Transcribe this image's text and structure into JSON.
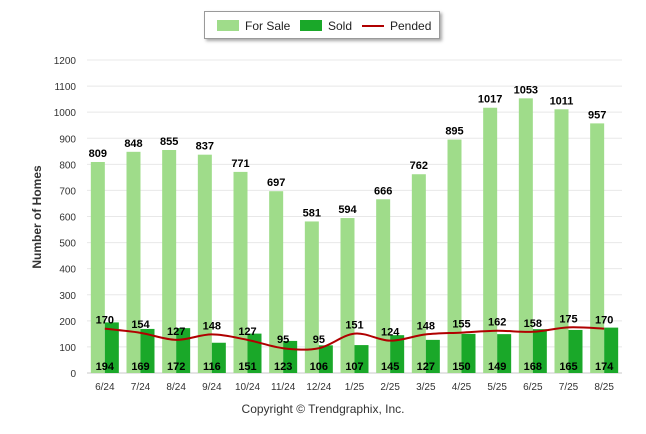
{
  "chart_data": {
    "type": "bar",
    "ylabel": "Number of Homes",
    "ylim": [
      0,
      1200
    ],
    "yticks": [
      0,
      100,
      200,
      300,
      400,
      500,
      600,
      700,
      800,
      900,
      1000,
      1100,
      1200
    ],
    "grid": true,
    "legend_position": "top-center",
    "categories": [
      "6/24",
      "7/24",
      "8/24",
      "9/24",
      "10/24",
      "11/24",
      "12/24",
      "1/25",
      "2/25",
      "3/25",
      "4/25",
      "5/25",
      "6/25",
      "7/25",
      "8/25"
    ],
    "series": [
      {
        "name": "For Sale",
        "kind": "bar",
        "color": "#9fdc8a",
        "values": [
          809,
          848,
          855,
          837,
          771,
          697,
          581,
          594,
          666,
          762,
          895,
          1017,
          1053,
          1011,
          957
        ]
      },
      {
        "name": "Sold",
        "kind": "bar",
        "color": "#1aa829",
        "values": [
          194,
          169,
          172,
          116,
          151,
          123,
          106,
          107,
          145,
          127,
          150,
          149,
          168,
          165,
          174
        ]
      },
      {
        "name": "Pended",
        "kind": "line",
        "color": "#b00000",
        "values": [
          170,
          154,
          127,
          148,
          127,
          95,
          95,
          151,
          124,
          148,
          155,
          162,
          158,
          175,
          170
        ]
      }
    ]
  },
  "footer": {
    "credit": "Copyright © Trendgraphix, Inc."
  }
}
